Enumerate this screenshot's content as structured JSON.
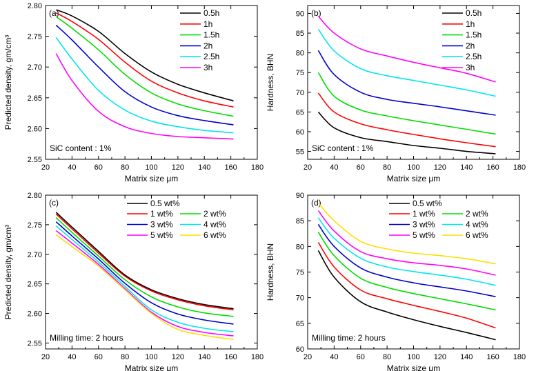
{
  "chart_data": [
    {
      "type": "line",
      "panel_label": "(a)",
      "xlabel": "Matrix size μm",
      "ylabel": "Predicted density, gm/cm³",
      "xlim": [
        20,
        180
      ],
      "ylim": [
        2.55,
        2.8
      ],
      "xticks": [
        20,
        40,
        60,
        80,
        100,
        120,
        140,
        160,
        180
      ],
      "yticks": [
        2.55,
        2.6,
        2.65,
        2.7,
        2.75,
        2.8
      ],
      "ytick_labels": [
        "2.55",
        "2.60",
        "2.65",
        "2.70",
        "2.75",
        "2.80"
      ],
      "annotation": "SiC content : 1%",
      "legend_position": "top-right",
      "legend_columns": 1,
      "x": [
        28,
        40,
        60,
        80,
        100,
        120,
        140,
        162
      ],
      "series": [
        {
          "name": "0.5h",
          "color": "#000000",
          "values": [
            2.793,
            2.783,
            2.758,
            2.722,
            2.692,
            2.672,
            2.658,
            2.645
          ]
        },
        {
          "name": "1h",
          "color": "#ff0000",
          "values": [
            2.788,
            2.774,
            2.745,
            2.708,
            2.677,
            2.658,
            2.645,
            2.635
          ]
        },
        {
          "name": "1.5h",
          "color": "#00dd00",
          "values": [
            2.782,
            2.763,
            2.728,
            2.688,
            2.658,
            2.64,
            2.629,
            2.62
          ]
        },
        {
          "name": "2h",
          "color": "#0000cc",
          "values": [
            2.768,
            2.744,
            2.7,
            2.66,
            2.635,
            2.621,
            2.613,
            2.606
          ]
        },
        {
          "name": "2.5h",
          "color": "#00e5ee",
          "values": [
            2.748,
            2.713,
            2.662,
            2.63,
            2.612,
            2.603,
            2.597,
            2.593
          ]
        },
        {
          "name": "3h",
          "color": "#ff00ff",
          "values": [
            2.722,
            2.678,
            2.628,
            2.603,
            2.592,
            2.587,
            2.585,
            2.583
          ]
        }
      ]
    },
    {
      "type": "line",
      "panel_label": "(b)",
      "xlabel": "Matrix size μm",
      "ylabel": "Hardness, BHN",
      "xlim": [
        20,
        180
      ],
      "ylim": [
        53,
        92
      ],
      "xticks": [
        20,
        40,
        60,
        80,
        100,
        120,
        140,
        160,
        180
      ],
      "yticks": [
        55,
        60,
        65,
        70,
        75,
        80,
        85,
        90
      ],
      "ytick_labels": [
        "55",
        "60",
        "65",
        "70",
        "75",
        "80",
        "85",
        "90"
      ],
      "annotation": "SiC content : 1%",
      "legend_position": "top-right",
      "legend_columns": 1,
      "x": [
        28,
        40,
        60,
        80,
        100,
        120,
        140,
        162
      ],
      "series": [
        {
          "name": "0.5h",
          "color": "#000000",
          "values": [
            65.0,
            61.0,
            58.5,
            57.5,
            56.5,
            55.8,
            55.0,
            54.4
          ]
        },
        {
          "name": "1h",
          "color": "#ff0000",
          "values": [
            69.8,
            65.0,
            62.0,
            60.5,
            59.3,
            58.2,
            57.2,
            56.2
          ]
        },
        {
          "name": "1.5h",
          "color": "#00dd00",
          "values": [
            75.0,
            69.0,
            65.5,
            64.0,
            62.8,
            61.7,
            60.6,
            59.4
          ]
        },
        {
          "name": "2h",
          "color": "#0000cc",
          "values": [
            80.6,
            74.5,
            70.0,
            68.2,
            67.2,
            66.3,
            65.3,
            64.2
          ]
        },
        {
          "name": "2.5h",
          "color": "#00e5ee",
          "values": [
            86.0,
            80.5,
            76.0,
            74.2,
            73.0,
            71.8,
            70.6,
            69.0
          ]
        },
        {
          "name": "3h",
          "color": "#ff00ff",
          "values": [
            89.3,
            85.0,
            81.0,
            79.2,
            77.6,
            76.2,
            74.8,
            72.6
          ]
        }
      ]
    },
    {
      "type": "line",
      "panel_label": "(c)",
      "xlabel": "Matrix size μm",
      "ylabel": "Predicted density, gm/cm³",
      "xlim": [
        20,
        180
      ],
      "ylim": [
        2.54,
        2.8
      ],
      "xticks": [
        20,
        40,
        60,
        80,
        100,
        120,
        140,
        160,
        180
      ],
      "yticks": [
        2.55,
        2.6,
        2.65,
        2.7,
        2.75,
        2.8
      ],
      "ytick_labels": [
        "2.55",
        "2.60",
        "2.65",
        "2.70",
        "2.75",
        "2.80"
      ],
      "annotation": "Milling time: 2 hours",
      "legend_position": "top-right",
      "legend_columns": 2,
      "x": [
        28,
        40,
        60,
        80,
        100,
        120,
        140,
        162
      ],
      "series": [
        {
          "name": "0.5 wt%",
          "color": "#000000",
          "values": [
            2.771,
            2.746,
            2.705,
            2.665,
            2.64,
            2.625,
            2.615,
            2.608
          ]
        },
        {
          "name": "1 wt%",
          "color": "#ff0000",
          "values": [
            2.768,
            2.743,
            2.702,
            2.663,
            2.638,
            2.623,
            2.613,
            2.606
          ]
        },
        {
          "name": "2 wt%",
          "color": "#00dd00",
          "values": [
            2.762,
            2.737,
            2.697,
            2.657,
            2.628,
            2.611,
            2.601,
            2.595
          ]
        },
        {
          "name": "3 wt%",
          "color": "#0000cc",
          "values": [
            2.755,
            2.731,
            2.692,
            2.651,
            2.618,
            2.599,
            2.589,
            2.582
          ]
        },
        {
          "name": "4 wt%",
          "color": "#00e5ee",
          "values": [
            2.748,
            2.725,
            2.687,
            2.646,
            2.606,
            2.585,
            2.575,
            2.569
          ]
        },
        {
          "name": "5 wt%",
          "color": "#ff00ff",
          "values": [
            2.74,
            2.719,
            2.683,
            2.642,
            2.602,
            2.578,
            2.568,
            2.562
          ]
        },
        {
          "name": "6 wt%",
          "color": "#ffdd00",
          "values": [
            2.733,
            2.713,
            2.68,
            2.64,
            2.6,
            2.573,
            2.563,
            2.556
          ]
        }
      ]
    },
    {
      "type": "line",
      "panel_label": "(d)",
      "xlabel": "Matrix size μm",
      "ylabel": "Hardness, BHN",
      "xlim": [
        20,
        180
      ],
      "ylim": [
        60,
        90
      ],
      "xticks": [
        20,
        40,
        60,
        80,
        100,
        120,
        140,
        160,
        180
      ],
      "yticks": [
        60,
        65,
        70,
        75,
        80,
        85,
        90
      ],
      "ytick_labels": [
        "60",
        "65",
        "70",
        "75",
        "80",
        "85",
        "90"
      ],
      "annotation": "Milling time: 2 hours",
      "legend_position": "top-right",
      "legend_columns": 2,
      "x": [
        28,
        40,
        60,
        80,
        100,
        120,
        140,
        162
      ],
      "series": [
        {
          "name": "0.5 wt%",
          "color": "#000000",
          "values": [
            79.2,
            74.0,
            69.2,
            67.2,
            65.7,
            64.4,
            63.2,
            61.8
          ]
        },
        {
          "name": "1 wt%",
          "color": "#ff0000",
          "values": [
            80.8,
            76.0,
            71.5,
            69.8,
            68.5,
            67.3,
            66.0,
            64.1
          ]
        },
        {
          "name": "2 wt%",
          "color": "#00dd00",
          "values": [
            82.8,
            78.2,
            73.8,
            72.0,
            70.8,
            69.8,
            68.8,
            67.6
          ]
        },
        {
          "name": "3 wt%",
          "color": "#0000cc",
          "values": [
            84.3,
            80.0,
            75.8,
            74.0,
            72.9,
            72.1,
            71.3,
            70.2
          ]
        },
        {
          "name": "4 wt%",
          "color": "#00e5ee",
          "values": [
            85.6,
            81.6,
            77.7,
            76.0,
            75.1,
            74.4,
            73.6,
            72.4
          ]
        },
        {
          "name": "5 wt%",
          "color": "#ff00ff",
          "values": [
            87.0,
            83.0,
            79.0,
            77.6,
            76.8,
            76.3,
            75.6,
            74.4
          ]
        },
        {
          "name": "6 wt%",
          "color": "#ffdd00",
          "values": [
            88.5,
            85.0,
            81.0,
            79.5,
            78.7,
            78.2,
            77.6,
            76.6
          ]
        }
      ]
    }
  ]
}
